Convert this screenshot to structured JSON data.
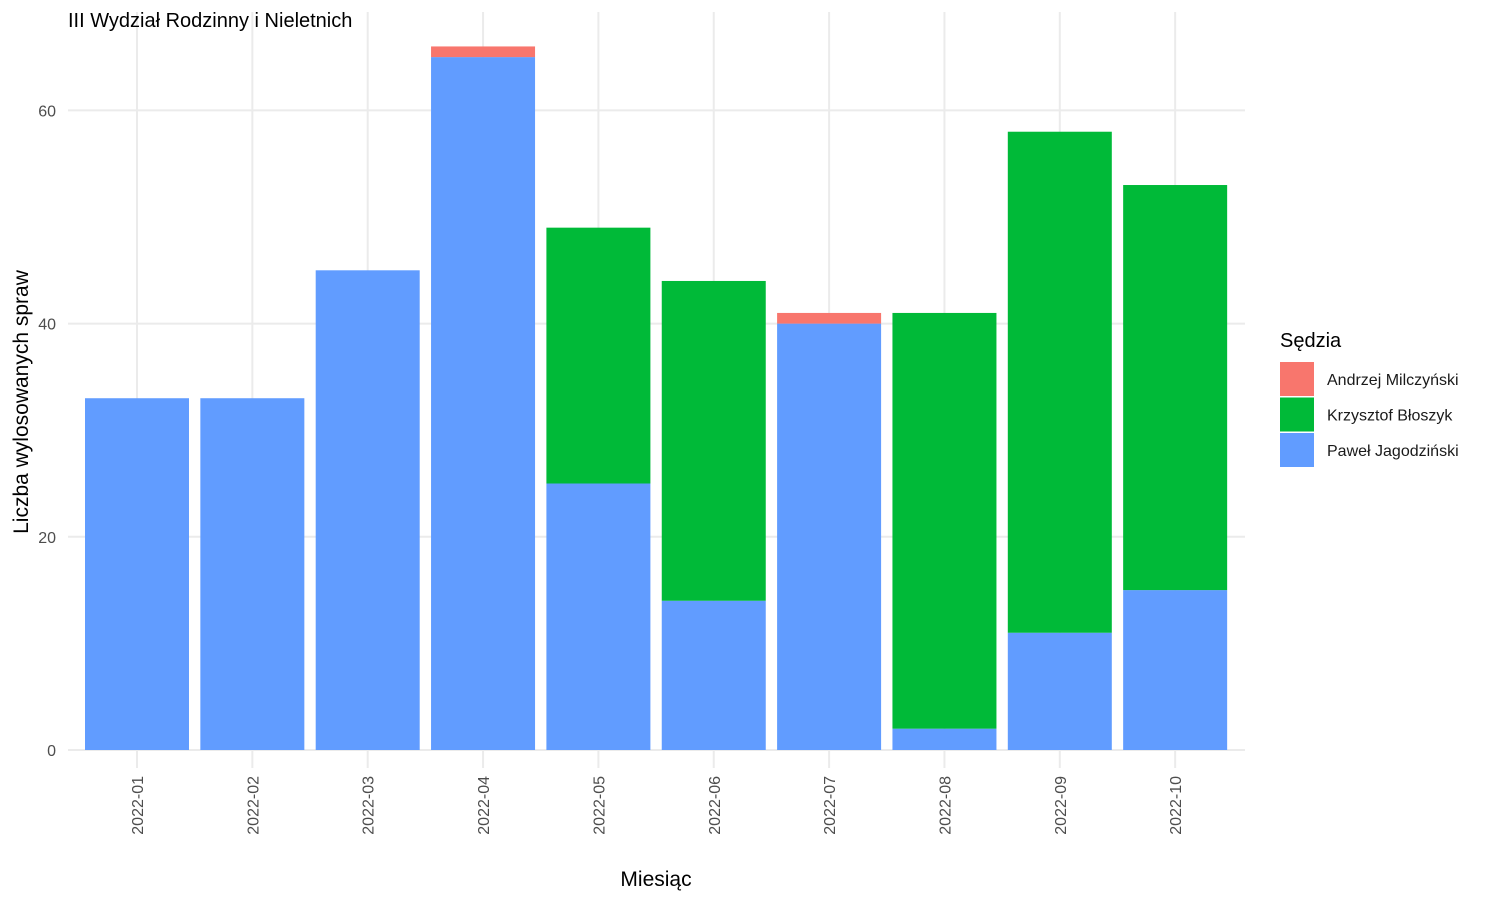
{
  "chart_data": {
    "type": "bar",
    "stacked": true,
    "title": "III Wydział Rodzinny i Nieletnich",
    "xlabel": "Miesiąc",
    "ylabel": "Liczba wylosowanych spraw",
    "ylim": [
      0,
      66
    ],
    "yticks": [
      0,
      20,
      40,
      60
    ],
    "grid": true,
    "categories": [
      "2022-01",
      "2022-02",
      "2022-03",
      "2022-04",
      "2022-05",
      "2022-06",
      "2022-07",
      "2022-08",
      "2022-09",
      "2022-10"
    ],
    "legend": {
      "title": "Sędzia",
      "position": "right"
    },
    "series": [
      {
        "name": "Paweł Jagodziński",
        "color": "#619CFF",
        "values": [
          33,
          33,
          45,
          65,
          25,
          14,
          40,
          2,
          11,
          15
        ]
      },
      {
        "name": "Krzysztof Błoszyk",
        "color": "#00BA38",
        "values": [
          0,
          0,
          0,
          0,
          24,
          30,
          0,
          39,
          47,
          38
        ]
      },
      {
        "name": "Andrzej Milczyński",
        "color": "#F8766D",
        "values": [
          0,
          0,
          0,
          1,
          0,
          0,
          1,
          0,
          0,
          0
        ]
      }
    ],
    "legend_order": [
      "Andrzej Milczyński",
      "Krzysztof Błoszyk",
      "Paweł Jagodziński"
    ]
  }
}
